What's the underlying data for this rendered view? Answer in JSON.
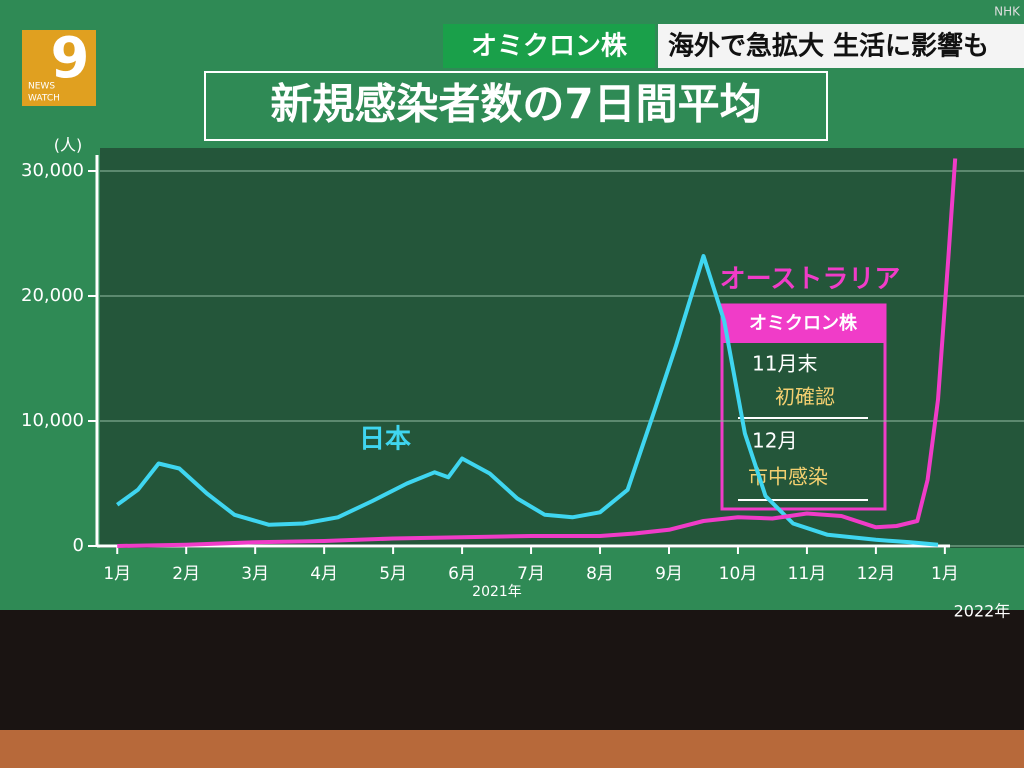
{
  "channel": "NHK",
  "logo": {
    "line1": "NEWS",
    "line2": "WATCH",
    "number": "9"
  },
  "banner": {
    "tag": "オミクロン株",
    "headline": "海外で急拡大 生活に影響も"
  },
  "chart_data": {
    "type": "line",
    "title": "新規感染者数の7日間平均",
    "y_unit": "(人)",
    "year_labels": [
      "2021年",
      "2022年"
    ],
    "xlim": [
      -0.25,
      12.35
    ],
    "xticks": [
      {
        "value": 0,
        "label": "1月"
      },
      {
        "value": 1,
        "label": "2月"
      },
      {
        "value": 2,
        "label": "3月"
      },
      {
        "value": 3,
        "label": "4月"
      },
      {
        "value": 4,
        "label": "5月"
      },
      {
        "value": 5,
        "label": "6月"
      },
      {
        "value": 6,
        "label": "7月"
      },
      {
        "value": 7,
        "label": "8月"
      },
      {
        "value": 8,
        "label": "9月"
      },
      {
        "value": 9,
        "label": "10月"
      },
      {
        "value": 10,
        "label": "11月"
      },
      {
        "value": 11,
        "label": "12月"
      },
      {
        "value": 12,
        "label": "1月"
      }
    ],
    "ylim": [
      0,
      32000
    ],
    "yticks": [
      0,
      {
        "value": 10000,
        "label": "10,000"
      },
      {
        "value": 20000,
        "label": "20,000"
      },
      {
        "value": 30000,
        "label": "30,000"
      }
    ],
    "grid": true,
    "series": [
      {
        "name": "日本",
        "color": "#3fd6f0",
        "x": [
          0,
          0.3,
          0.6,
          0.9,
          1.3,
          1.7,
          2.2,
          2.7,
          3.2,
          3.7,
          4.2,
          4.6,
          4.8,
          5.0,
          5.4,
          5.8,
          6.2,
          6.6,
          7.0,
          7.4,
          7.8,
          8.1,
          8.5,
          8.8,
          9.1,
          9.4,
          9.8,
          10.3,
          11.0,
          11.5,
          11.9
        ],
        "values": [
          3300,
          4500,
          6600,
          6200,
          4200,
          2500,
          1700,
          1800,
          2300,
          3600,
          5000,
          5900,
          5500,
          7000,
          5800,
          3800,
          2500,
          2300,
          2700,
          4500,
          11000,
          16000,
          23200,
          18000,
          9000,
          4000,
          1800,
          900,
          500,
          300,
          100
        ]
      },
      {
        "name": "オーストラリア",
        "color": "#f03cc8",
        "x": [
          0,
          1,
          2,
          3,
          4,
          5,
          6,
          7,
          7.5,
          8,
          8.5,
          9,
          9.5,
          10,
          10.5,
          11,
          11.3,
          11.6,
          11.75,
          11.9,
          12.05,
          12.15
        ],
        "values": [
          0,
          100,
          300,
          400,
          600,
          700,
          800,
          800,
          1000,
          1300,
          2000,
          2300,
          2200,
          2600,
          2400,
          1500,
          1600,
          2000,
          5300,
          11700,
          23000,
          31000
        ]
      }
    ],
    "annotation": {
      "title": "オミクロン株",
      "items": [
        "11月末",
        "初確認",
        "12月",
        "市中感染"
      ]
    }
  }
}
